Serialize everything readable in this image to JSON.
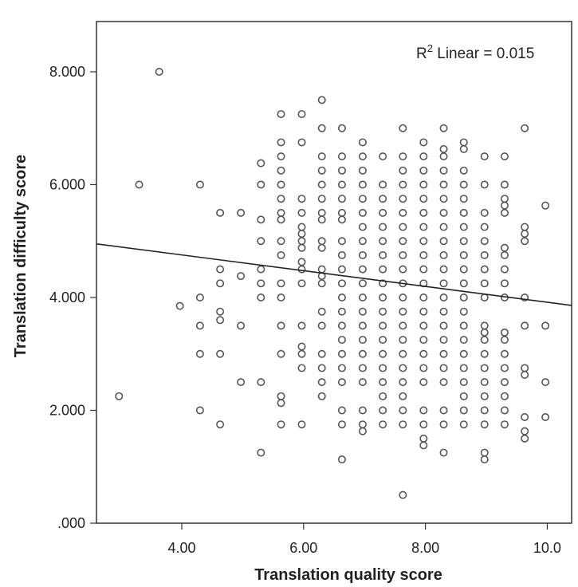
{
  "chart_data": {
    "type": "scatter",
    "title": "",
    "xlabel": "Translation quality score",
    "ylabel": "Translation difficulty score",
    "xlim": [
      2.6,
      10.4
    ],
    "ylim": [
      0,
      8.0
    ],
    "x_ticks": [
      4,
      6,
      8,
      10
    ],
    "x_tick_labels": [
      "4.00",
      "6.00",
      "8.00",
      "10.0"
    ],
    "y_ticks": [
      0,
      2,
      4,
      6,
      8
    ],
    "y_tick_labels": [
      ".000",
      "2.000",
      "4.000",
      "6.000",
      "8.000"
    ],
    "grid": false,
    "annotation": {
      "prefix": "R",
      "superscript": "2",
      "suffix": " Linear = 0.015"
    },
    "fit_line": {
      "type": "linear",
      "x": [
        2.6,
        10.4
      ],
      "y": [
        4.95,
        3.86
      ]
    },
    "series": [
      {
        "marker": "open-circle",
        "color": "#555555",
        "points": [
          [
            2.97,
            2.25
          ],
          [
            3.3,
            6.0
          ],
          [
            3.63,
            8.0
          ],
          [
            3.97,
            3.85
          ],
          [
            4.3,
            6.0
          ],
          [
            4.3,
            4.0
          ],
          [
            4.3,
            3.5
          ],
          [
            4.3,
            3.0
          ],
          [
            4.3,
            2.0
          ],
          [
            4.63,
            5.5
          ],
          [
            4.63,
            4.5
          ],
          [
            4.63,
            4.25
          ],
          [
            4.63,
            3.75
          ],
          [
            4.63,
            3.6
          ],
          [
            4.63,
            3.0
          ],
          [
            4.63,
            1.75
          ],
          [
            4.97,
            5.5
          ],
          [
            4.97,
            4.38
          ],
          [
            4.97,
            3.5
          ],
          [
            4.97,
            2.5
          ],
          [
            5.3,
            6.38
          ],
          [
            5.3,
            6.0
          ],
          [
            5.3,
            5.38
          ],
          [
            5.3,
            5.0
          ],
          [
            5.3,
            4.5
          ],
          [
            5.3,
            4.25
          ],
          [
            5.3,
            4.0
          ],
          [
            5.3,
            2.5
          ],
          [
            5.3,
            1.25
          ],
          [
            5.63,
            7.25
          ],
          [
            5.63,
            6.75
          ],
          [
            5.63,
            6.5
          ],
          [
            5.63,
            6.25
          ],
          [
            5.63,
            6.0
          ],
          [
            5.63,
            5.75
          ],
          [
            5.63,
            5.5
          ],
          [
            5.63,
            5.38
          ],
          [
            5.63,
            5.0
          ],
          [
            5.63,
            4.75
          ],
          [
            5.63,
            4.25
          ],
          [
            5.63,
            4.0
          ],
          [
            5.63,
            3.5
          ],
          [
            5.63,
            3.0
          ],
          [
            5.63,
            2.25
          ],
          [
            5.63,
            2.13
          ],
          [
            5.63,
            1.75
          ],
          [
            5.97,
            7.25
          ],
          [
            5.97,
            6.75
          ],
          [
            5.97,
            5.75
          ],
          [
            5.97,
            5.5
          ],
          [
            5.97,
            5.25
          ],
          [
            5.97,
            5.13
          ],
          [
            5.97,
            5.0
          ],
          [
            5.97,
            4.88
          ],
          [
            5.97,
            4.63
          ],
          [
            5.97,
            4.5
          ],
          [
            5.97,
            4.25
          ],
          [
            5.97,
            3.5
          ],
          [
            5.97,
            3.13
          ],
          [
            5.97,
            3.0
          ],
          [
            5.97,
            2.75
          ],
          [
            5.97,
            1.75
          ],
          [
            6.3,
            7.5
          ],
          [
            6.3,
            7.0
          ],
          [
            6.3,
            6.5
          ],
          [
            6.3,
            6.25
          ],
          [
            6.3,
            6.0
          ],
          [
            6.3,
            5.75
          ],
          [
            6.3,
            5.5
          ],
          [
            6.3,
            5.38
          ],
          [
            6.3,
            5.0
          ],
          [
            6.3,
            4.88
          ],
          [
            6.3,
            4.5
          ],
          [
            6.3,
            4.38
          ],
          [
            6.3,
            4.25
          ],
          [
            6.3,
            3.75
          ],
          [
            6.3,
            3.5
          ],
          [
            6.3,
            3.0
          ],
          [
            6.3,
            2.75
          ],
          [
            6.3,
            2.5
          ],
          [
            6.3,
            2.25
          ],
          [
            6.63,
            7.0
          ],
          [
            6.63,
            6.5
          ],
          [
            6.63,
            6.25
          ],
          [
            6.63,
            6.0
          ],
          [
            6.63,
            5.75
          ],
          [
            6.63,
            5.5
          ],
          [
            6.63,
            5.38
          ],
          [
            6.63,
            5.0
          ],
          [
            6.63,
            4.75
          ],
          [
            6.63,
            4.5
          ],
          [
            6.63,
            4.25
          ],
          [
            6.63,
            4.0
          ],
          [
            6.63,
            3.75
          ],
          [
            6.63,
            3.5
          ],
          [
            6.63,
            3.25
          ],
          [
            6.63,
            3.0
          ],
          [
            6.63,
            2.75
          ],
          [
            6.63,
            2.5
          ],
          [
            6.63,
            2.0
          ],
          [
            6.63,
            1.75
          ],
          [
            6.63,
            1.13
          ],
          [
            6.97,
            6.75
          ],
          [
            6.97,
            6.5
          ],
          [
            6.97,
            6.25
          ],
          [
            6.97,
            6.0
          ],
          [
            6.97,
            5.75
          ],
          [
            6.97,
            5.5
          ],
          [
            6.97,
            5.25
          ],
          [
            6.97,
            5.0
          ],
          [
            6.97,
            4.75
          ],
          [
            6.97,
            4.5
          ],
          [
            6.97,
            4.25
          ],
          [
            6.97,
            4.0
          ],
          [
            6.97,
            3.75
          ],
          [
            6.97,
            3.5
          ],
          [
            6.97,
            3.25
          ],
          [
            6.97,
            3.0
          ],
          [
            6.97,
            2.75
          ],
          [
            6.97,
            2.5
          ],
          [
            6.97,
            2.0
          ],
          [
            6.97,
            1.75
          ],
          [
            6.97,
            1.63
          ],
          [
            7.3,
            6.5
          ],
          [
            7.3,
            6.0
          ],
          [
            7.3,
            5.75
          ],
          [
            7.3,
            5.5
          ],
          [
            7.3,
            5.25
          ],
          [
            7.3,
            5.0
          ],
          [
            7.3,
            4.75
          ],
          [
            7.3,
            4.5
          ],
          [
            7.3,
            4.25
          ],
          [
            7.3,
            4.0
          ],
          [
            7.3,
            3.75
          ],
          [
            7.3,
            3.5
          ],
          [
            7.3,
            3.25
          ],
          [
            7.3,
            3.0
          ],
          [
            7.3,
            2.75
          ],
          [
            7.3,
            2.5
          ],
          [
            7.3,
            2.25
          ],
          [
            7.3,
            2.0
          ],
          [
            7.3,
            1.75
          ],
          [
            7.63,
            7.0
          ],
          [
            7.63,
            6.5
          ],
          [
            7.63,
            6.25
          ],
          [
            7.63,
            6.0
          ],
          [
            7.63,
            5.75
          ],
          [
            7.63,
            5.5
          ],
          [
            7.63,
            5.25
          ],
          [
            7.63,
            5.0
          ],
          [
            7.63,
            4.75
          ],
          [
            7.63,
            4.5
          ],
          [
            7.63,
            4.25
          ],
          [
            7.63,
            4.0
          ],
          [
            7.63,
            3.75
          ],
          [
            7.63,
            3.5
          ],
          [
            7.63,
            3.25
          ],
          [
            7.63,
            3.0
          ],
          [
            7.63,
            2.75
          ],
          [
            7.63,
            2.5
          ],
          [
            7.63,
            2.25
          ],
          [
            7.63,
            2.0
          ],
          [
            7.63,
            1.75
          ],
          [
            7.63,
            0.5
          ],
          [
            7.97,
            6.75
          ],
          [
            7.97,
            6.5
          ],
          [
            7.97,
            6.25
          ],
          [
            7.97,
            6.0
          ],
          [
            7.97,
            5.75
          ],
          [
            7.97,
            5.5
          ],
          [
            7.97,
            5.25
          ],
          [
            7.97,
            5.0
          ],
          [
            7.97,
            4.75
          ],
          [
            7.97,
            4.5
          ],
          [
            7.97,
            4.25
          ],
          [
            7.97,
            4.0
          ],
          [
            7.97,
            3.75
          ],
          [
            7.97,
            3.5
          ],
          [
            7.97,
            3.25
          ],
          [
            7.97,
            3.0
          ],
          [
            7.97,
            2.75
          ],
          [
            7.97,
            2.5
          ],
          [
            7.97,
            2.0
          ],
          [
            7.97,
            1.75
          ],
          [
            7.97,
            1.5
          ],
          [
            7.97,
            1.38
          ],
          [
            8.3,
            7.0
          ],
          [
            8.3,
            6.63
          ],
          [
            8.3,
            6.5
          ],
          [
            8.3,
            6.25
          ],
          [
            8.3,
            6.0
          ],
          [
            8.3,
            5.75
          ],
          [
            8.3,
            5.5
          ],
          [
            8.3,
            5.25
          ],
          [
            8.3,
            5.0
          ],
          [
            8.3,
            4.75
          ],
          [
            8.3,
            4.5
          ],
          [
            8.3,
            4.25
          ],
          [
            8.3,
            4.0
          ],
          [
            8.3,
            3.75
          ],
          [
            8.3,
            3.5
          ],
          [
            8.3,
            3.25
          ],
          [
            8.3,
            3.0
          ],
          [
            8.3,
            2.75
          ],
          [
            8.3,
            2.5
          ],
          [
            8.3,
            2.0
          ],
          [
            8.3,
            1.75
          ],
          [
            8.3,
            1.25
          ],
          [
            8.63,
            6.75
          ],
          [
            8.63,
            6.63
          ],
          [
            8.63,
            6.25
          ],
          [
            8.63,
            6.0
          ],
          [
            8.63,
            5.75
          ],
          [
            8.63,
            5.5
          ],
          [
            8.63,
            5.25
          ],
          [
            8.63,
            5.0
          ],
          [
            8.63,
            4.75
          ],
          [
            8.63,
            4.5
          ],
          [
            8.63,
            4.25
          ],
          [
            8.63,
            4.0
          ],
          [
            8.63,
            3.75
          ],
          [
            8.63,
            3.5
          ],
          [
            8.63,
            3.25
          ],
          [
            8.63,
            3.0
          ],
          [
            8.63,
            2.75
          ],
          [
            8.63,
            2.5
          ],
          [
            8.63,
            2.25
          ],
          [
            8.63,
            2.0
          ],
          [
            8.63,
            1.75
          ],
          [
            8.97,
            6.5
          ],
          [
            8.97,
            6.0
          ],
          [
            8.97,
            5.5
          ],
          [
            8.97,
            5.25
          ],
          [
            8.97,
            5.0
          ],
          [
            8.97,
            4.75
          ],
          [
            8.97,
            4.5
          ],
          [
            8.97,
            4.25
          ],
          [
            8.97,
            4.0
          ],
          [
            8.97,
            3.5
          ],
          [
            8.97,
            3.38
          ],
          [
            8.97,
            3.25
          ],
          [
            8.97,
            3.0
          ],
          [
            8.97,
            2.75
          ],
          [
            8.97,
            2.5
          ],
          [
            8.97,
            2.25
          ],
          [
            8.97,
            2.0
          ],
          [
            8.97,
            1.75
          ],
          [
            8.97,
            1.25
          ],
          [
            8.97,
            1.13
          ],
          [
            9.3,
            6.5
          ],
          [
            9.3,
            6.0
          ],
          [
            9.3,
            5.75
          ],
          [
            9.3,
            5.63
          ],
          [
            9.3,
            5.5
          ],
          [
            9.3,
            4.88
          ],
          [
            9.3,
            4.75
          ],
          [
            9.3,
            4.5
          ],
          [
            9.3,
            4.25
          ],
          [
            9.3,
            4.0
          ],
          [
            9.3,
            3.38
          ],
          [
            9.3,
            3.25
          ],
          [
            9.3,
            3.0
          ],
          [
            9.3,
            2.75
          ],
          [
            9.3,
            2.5
          ],
          [
            9.3,
            2.25
          ],
          [
            9.3,
            2.0
          ],
          [
            9.3,
            1.75
          ],
          [
            9.63,
            7.0
          ],
          [
            9.63,
            5.25
          ],
          [
            9.63,
            5.13
          ],
          [
            9.63,
            5.0
          ],
          [
            9.63,
            4.0
          ],
          [
            9.63,
            3.5
          ],
          [
            9.63,
            2.75
          ],
          [
            9.63,
            2.63
          ],
          [
            9.63,
            1.88
          ],
          [
            9.63,
            1.63
          ],
          [
            9.63,
            1.5
          ],
          [
            9.97,
            5.63
          ],
          [
            9.97,
            3.5
          ],
          [
            9.97,
            2.5
          ],
          [
            9.97,
            1.88
          ]
        ]
      }
    ]
  }
}
